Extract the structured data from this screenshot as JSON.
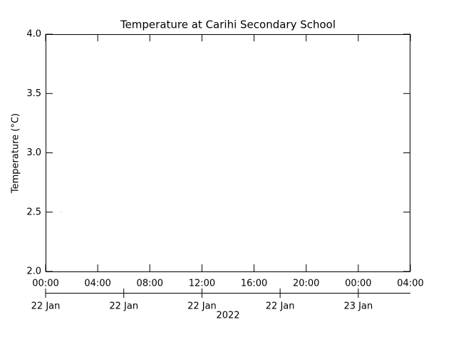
{
  "chart_data": {
    "type": "line",
    "title": "Temperature at Carihi Secondary School",
    "y_label": "Temperature (°C)",
    "x": [
      "2022-01-22T01:10Z"
    ],
    "series": [
      {
        "values": [
          2.5
        ],
        "color": "#dddddd"
      }
    ],
    "xlim": [
      "2022-01-22T00:00Z",
      "2022-01-23T04:00Z"
    ],
    "xticks": [
      {
        "value": "2022-01-22T00:00Z",
        "label": "00:00"
      },
      {
        "value": "2022-01-22T04:00Z",
        "label": "04:00"
      },
      {
        "value": "2022-01-22T08:00Z",
        "label": "08:00"
      },
      {
        "value": "2022-01-22T12:00Z",
        "label": "12:00"
      },
      {
        "value": "2022-01-22T16:00Z",
        "label": "16:00"
      },
      {
        "value": "2022-01-22T20:00Z",
        "label": "20:00"
      },
      {
        "value": "2022-01-23T00:00Z",
        "label": "00:00"
      },
      {
        "value": "2022-01-23T04:00Z",
        "label": "04:00"
      }
    ],
    "date_ticks": [
      {
        "value": "2022-01-22T00:00Z",
        "label": "22 Jan"
      },
      {
        "value": "2022-01-22T06:00Z",
        "label": "22 Jan"
      },
      {
        "value": "2022-01-22T12:00Z",
        "label": "22 Jan"
      },
      {
        "value": "2022-01-22T18:00Z",
        "label": "22 Jan"
      },
      {
        "value": "2022-01-23T00:00Z",
        "label": "23 Jan"
      }
    ],
    "year_label": "2022",
    "ylim": [
      2,
      4
    ],
    "yticks": [
      {
        "value": 2,
        "label": "2.0"
      },
      {
        "value": 2.5,
        "label": "2.5"
      },
      {
        "value": 3,
        "label": "3.0"
      },
      {
        "value": 3.5,
        "label": "3.5"
      },
      {
        "value": 4,
        "label": "4.0"
      }
    ],
    "grid": false
  }
}
